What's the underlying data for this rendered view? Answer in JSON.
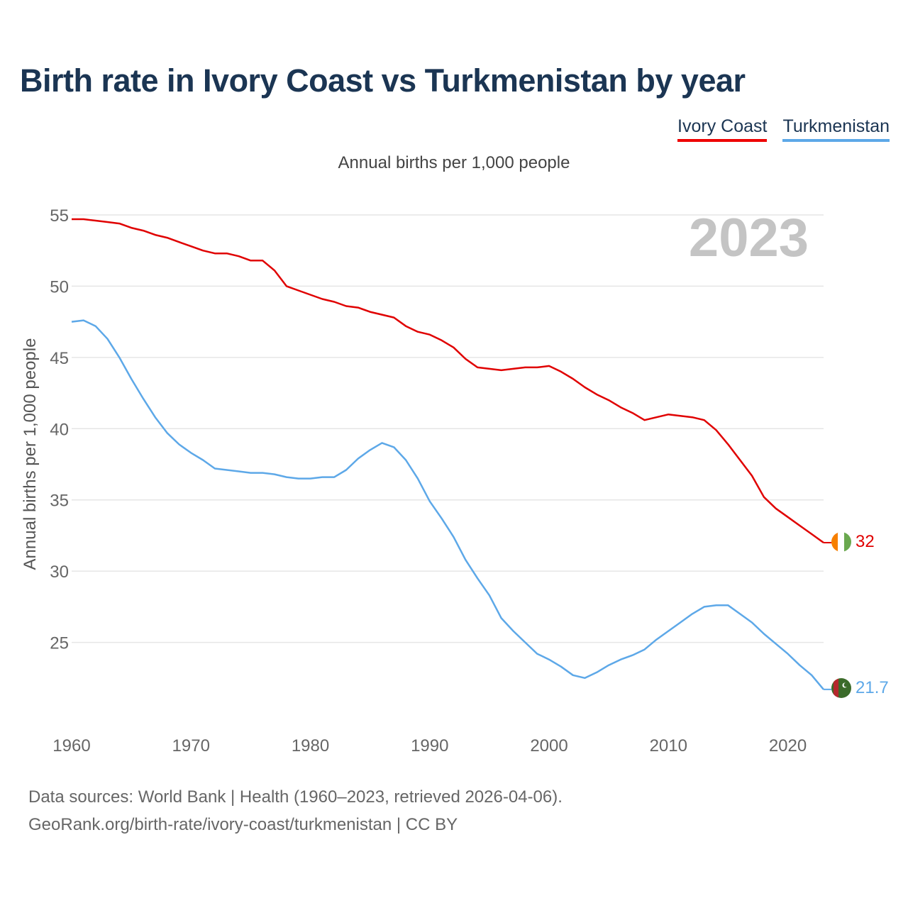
{
  "title": "Birth rate in Ivory Coast vs Turkmenistan by year",
  "legend": [
    {
      "name": "Ivory Coast",
      "color": "#e00000"
    },
    {
      "name": "Turkmenistan",
      "color": "#5da8e8"
    }
  ],
  "subtitle": "Annual births per 1,000 people",
  "year_watermark": "2023",
  "source_line1": "Data sources: World Bank | Health (1960–2023, retrieved 2026-04-06).",
  "source_line2": "GeoRank.org/birth-rate/ivory-coast/turkmenistan | CC BY",
  "chart_data": {
    "type": "line",
    "title": "Birth rate in Ivory Coast vs Turkmenistan by year",
    "ylabel": "Annual births per 1,000 people",
    "xlabel": "",
    "xlim": [
      1960,
      2023
    ],
    "ylim": [
      20,
      55
    ],
    "x_ticks": [
      1960,
      1970,
      1980,
      1990,
      2000,
      2010,
      2020
    ],
    "y_ticks": [
      25,
      30,
      35,
      40,
      45,
      50,
      55
    ],
    "grid": true,
    "x": [
      1960,
      1961,
      1962,
      1963,
      1964,
      1965,
      1966,
      1967,
      1968,
      1969,
      1970,
      1971,
      1972,
      1973,
      1974,
      1975,
      1976,
      1977,
      1978,
      1979,
      1980,
      1981,
      1982,
      1983,
      1984,
      1985,
      1986,
      1987,
      1988,
      1989,
      1990,
      1991,
      1992,
      1993,
      1994,
      1995,
      1996,
      1997,
      1998,
      1999,
      2000,
      2001,
      2002,
      2003,
      2004,
      2005,
      2006,
      2007,
      2008,
      2009,
      2010,
      2011,
      2012,
      2013,
      2014,
      2015,
      2016,
      2017,
      2018,
      2019,
      2020,
      2021,
      2022,
      2023
    ],
    "series": [
      {
        "name": "Ivory Coast",
        "color": "#e00000",
        "end_label": "32",
        "values": [
          54.7,
          54.7,
          54.6,
          54.5,
          54.4,
          54.1,
          53.9,
          53.6,
          53.4,
          53.1,
          52.8,
          52.5,
          52.3,
          52.3,
          52.1,
          51.8,
          51.8,
          51.1,
          50.0,
          49.7,
          49.4,
          49.1,
          48.9,
          48.6,
          48.5,
          48.2,
          48.0,
          47.8,
          47.2,
          46.8,
          46.6,
          46.2,
          45.7,
          44.9,
          44.3,
          44.2,
          44.1,
          44.2,
          44.3,
          44.3,
          44.4,
          44.0,
          43.5,
          42.9,
          42.4,
          42.0,
          41.5,
          41.1,
          40.6,
          40.8,
          41.0,
          40.9,
          40.8,
          40.6,
          39.9,
          38.9,
          37.8,
          36.7,
          35.2,
          34.4,
          33.8,
          33.2,
          32.6,
          32.0
        ]
      },
      {
        "name": "Turkmenistan",
        "color": "#5da8e8",
        "end_label": "21.7",
        "values": [
          47.5,
          47.6,
          47.2,
          46.3,
          45.0,
          43.5,
          42.1,
          40.8,
          39.7,
          38.9,
          38.3,
          37.8,
          37.2,
          37.1,
          37.0,
          36.9,
          36.9,
          36.8,
          36.6,
          36.5,
          36.5,
          36.6,
          36.6,
          37.1,
          37.9,
          38.5,
          39.0,
          38.7,
          37.8,
          36.5,
          34.9,
          33.7,
          32.4,
          30.8,
          29.5,
          28.3,
          26.7,
          25.8,
          25.0,
          24.2,
          23.8,
          23.3,
          22.7,
          22.5,
          22.9,
          23.4,
          23.8,
          24.1,
          24.5,
          25.2,
          25.8,
          26.4,
          27.0,
          27.5,
          27.6,
          27.6,
          27.0,
          26.4,
          25.6,
          24.9,
          24.2,
          23.4,
          22.7,
          21.7
        ]
      }
    ]
  }
}
